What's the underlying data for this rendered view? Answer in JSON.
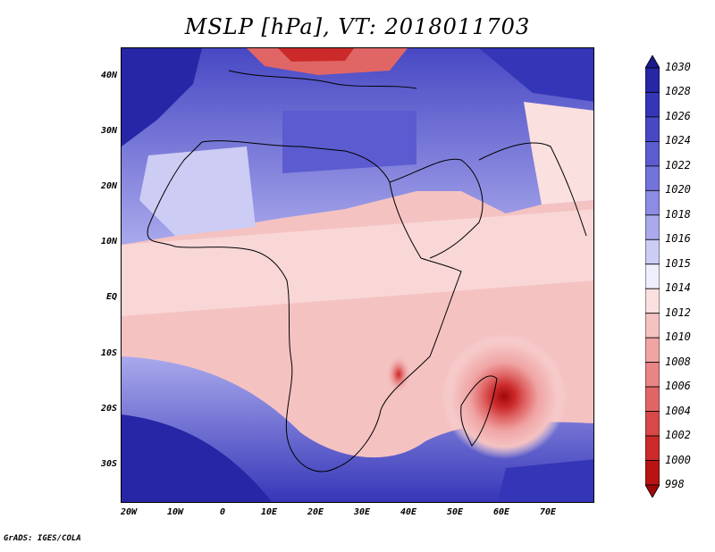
{
  "title": "MSLP [hPa], VT: 2018011703",
  "credit": "GrADS: IGES/COLA",
  "lat_labels": [
    "40N",
    "30N",
    "20N",
    "10N",
    "EQ",
    "10S",
    "20S",
    "30S"
  ],
  "lon_labels": [
    "20W",
    "10W",
    "0",
    "10E",
    "20E",
    "30E",
    "40E",
    "50E",
    "60E",
    "70E"
  ],
  "colorbar": {
    "levels": [
      "1030",
      "1028",
      "1026",
      "1024",
      "1022",
      "1020",
      "1018",
      "1016",
      "1015",
      "1014",
      "1012",
      "1010",
      "1008",
      "1006",
      "1004",
      "1002",
      "1000",
      "998"
    ],
    "colors": [
      "#1a1a8c",
      "#2626a6",
      "#3535b8",
      "#4848c4",
      "#5c5cd0",
      "#7373dc",
      "#8c8ce4",
      "#a9a9ec",
      "#ccccf4",
      "#eeeefc",
      "#fbe0e0",
      "#f5c2c2",
      "#f0a4a4",
      "#e88585",
      "#e06666",
      "#d84848",
      "#cc2a2a",
      "#b81414",
      "#a00808"
    ]
  },
  "map_data": {
    "field": "MSLP",
    "units": "hPa",
    "valid_time": "2018011703",
    "lon_range": [
      -22,
      80
    ],
    "lat_range": [
      -37,
      45
    ],
    "features": {
      "saharan_high": "high pressure (~1020-1024 hPa) over North Africa",
      "mediterranean_low": "low pressure band over southern Europe",
      "cyclone": "tropical low centred near 62E 18S, minimum ~998 hPa",
      "east_africa_low": "local low near 37E 14S",
      "southern_high": "high pressure (~1024-1030 hPa) over South Atlantic / Southern Ocean"
    }
  }
}
